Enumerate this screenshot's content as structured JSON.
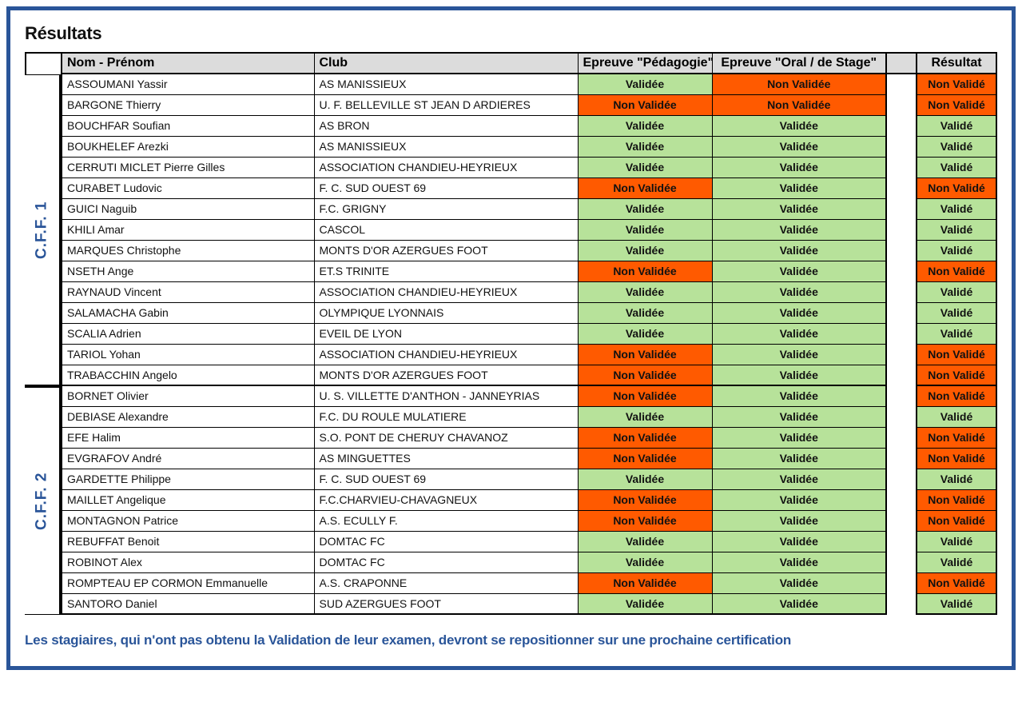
{
  "title": "Résultats",
  "colors": {
    "frame_border": "#2a5599",
    "header_bg": "#dcdcdc",
    "status_valid": "#b7e29a",
    "status_invalid": "#ff5a00",
    "accent_text": "#2a5599"
  },
  "columns": {
    "name": "Nom - Prénom",
    "club": "Club",
    "ped": "Epreuve \"Pédagogie\"",
    "oral": "Epreuve \"Oral / de Stage\"",
    "res": "Résultat"
  },
  "status_labels": {
    "validee": "Validée",
    "non_validee": "Non Validée",
    "valide": "Validé",
    "non_valide": "Non Validé"
  },
  "sections": [
    {
      "label": "C.F.F. 1",
      "rows": [
        {
          "name": "ASSOUMANI Yassir",
          "club": "AS MANISSIEUX",
          "ped": "Validée",
          "oral": "Non Validée",
          "res": "Non Validé"
        },
        {
          "name": "BARGONE Thierry",
          "club": "U. F. BELLEVILLE ST JEAN D ARDIERES",
          "ped": "Non Validée",
          "oral": "Non Validée",
          "res": "Non Validé"
        },
        {
          "name": "BOUCHFAR Soufian",
          "club": "AS BRON",
          "ped": "Validée",
          "oral": "Validée",
          "res": "Validé"
        },
        {
          "name": "BOUKHELEF Arezki",
          "club": "AS MANISSIEUX",
          "ped": "Validée",
          "oral": "Validée",
          "res": "Validé"
        },
        {
          "name": "CERRUTI MICLET Pierre Gilles",
          "club": "ASSOCIATION CHANDIEU-HEYRIEUX",
          "ped": "Validée",
          "oral": "Validée",
          "res": "Validé"
        },
        {
          "name": "CURABET Ludovic",
          "club": "F. C. SUD OUEST 69",
          "ped": "Non Validée",
          "oral": "Validée",
          "res": "Non Validé"
        },
        {
          "name": "GUICI Naguib",
          "club": "F.C. GRIGNY",
          "ped": "Validée",
          "oral": "Validée",
          "res": "Validé"
        },
        {
          "name": "KHILI Amar",
          "club": "CASCOL",
          "ped": "Validée",
          "oral": "Validée",
          "res": "Validé"
        },
        {
          "name": "MARQUES Christophe",
          "club": "MONTS D'OR AZERGUES FOOT",
          "ped": "Validée",
          "oral": "Validée",
          "res": "Validé"
        },
        {
          "name": "NSETH Ange",
          "club": "ET.S TRINITE",
          "ped": "Non Validée",
          "oral": "Validée",
          "res": "Non Validé"
        },
        {
          "name": "RAYNAUD Vincent",
          "club": "ASSOCIATION CHANDIEU-HEYRIEUX",
          "ped": "Validée",
          "oral": "Validée",
          "res": "Validé"
        },
        {
          "name": "SALAMACHA Gabin",
          "club": "OLYMPIQUE LYONNAIS",
          "ped": "Validée",
          "oral": "Validée",
          "res": "Validé"
        },
        {
          "name": "SCALIA Adrien",
          "club": "EVEIL DE LYON",
          "ped": "Validée",
          "oral": "Validée",
          "res": "Validé"
        },
        {
          "name": "TARIOL Yohan",
          "club": "ASSOCIATION CHANDIEU-HEYRIEUX",
          "ped": "Non Validée",
          "oral": "Validée",
          "res": "Non Validé"
        },
        {
          "name": "TRABACCHIN Angelo",
          "club": "MONTS D'OR AZERGUES FOOT",
          "ped": "Non Validée",
          "oral": "Validée",
          "res": "Non Validé"
        }
      ]
    },
    {
      "label": "C.F.F. 2",
      "rows": [
        {
          "name": "BORNET Olivier",
          "club": "U. S. VILLETTE D'ANTHON - JANNEYRIAS",
          "ped": "Non Validée",
          "oral": "Validée",
          "res": "Non Validé"
        },
        {
          "name": "DEBIASE Alexandre",
          "club": "F.C. DU ROULE MULATIERE",
          "ped": "Validée",
          "oral": "Validée",
          "res": "Validé"
        },
        {
          "name": "EFE Halim",
          "club": "S.O. PONT DE CHERUY CHAVANOZ",
          "ped": "Non Validée",
          "oral": "Validée",
          "res": "Non Validé"
        },
        {
          "name": "EVGRAFOV André",
          "club": "AS MINGUETTES",
          "ped": "Non Validée",
          "oral": "Validée",
          "res": "Non Validé"
        },
        {
          "name": "GARDETTE Philippe",
          "club": "F. C. SUD OUEST 69",
          "ped": "Validée",
          "oral": "Validée",
          "res": "Validé"
        },
        {
          "name": "MAILLET Angelique",
          "club": "F.C.CHARVIEU-CHAVAGNEUX",
          "ped": "Non Validée",
          "oral": "Validée",
          "res": "Non Validé"
        },
        {
          "name": "MONTAGNON Patrice",
          "club": "A.S. ECULLY F.",
          "ped": "Non Validée",
          "oral": "Validée",
          "res": "Non Validé"
        },
        {
          "name": "REBUFFAT Benoit",
          "club": "DOMTAC FC",
          "ped": "Validée",
          "oral": "Validée",
          "res": "Validé"
        },
        {
          "name": "ROBINOT Alex",
          "club": "DOMTAC FC",
          "ped": "Validée",
          "oral": "Validée",
          "res": "Validé"
        },
        {
          "name": "ROMPTEAU EP CORMON  Emmanuelle",
          "club": "A.S. CRAPONNE",
          "ped": "Non Validée",
          "oral": "Validée",
          "res": "Non Validé"
        },
        {
          "name": "SANTORO Daniel",
          "club": "SUD AZERGUES FOOT",
          "ped": "Validée",
          "oral": "Validée",
          "res": "Validé"
        }
      ]
    }
  ],
  "footnote": "Les stagiaires, qui n'ont pas obtenu la Validation de leur examen, devront se repositionner sur une prochaine certification"
}
